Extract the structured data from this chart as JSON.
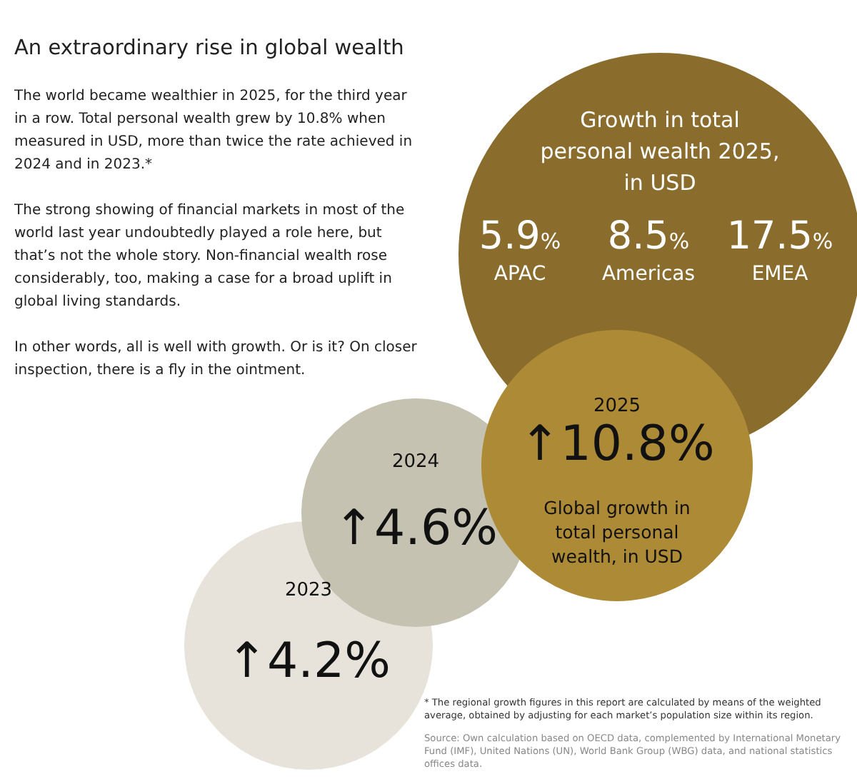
{
  "chart_data": [
    {
      "type": "other",
      "title": "Growth in total personal wealth 2025, in USD",
      "categories": [
        "APAC",
        "Americas",
        "EMEA"
      ],
      "values": [
        5.9,
        8.5,
        17.5
      ],
      "value_labels": [
        "5.9%",
        "8.5%",
        "17.5%"
      ],
      "color": "#8a6c2c"
    },
    {
      "type": "other",
      "title": "An extraordinary rise in global wealth",
      "categories": [
        "2023",
        "2024",
        "2025"
      ],
      "values": [
        4.2,
        4.6,
        10.8
      ],
      "value_labels": [
        "↑4.2%",
        "↑4.6%",
        "↑10.8%"
      ],
      "colors": [
        "#e7e3da",
        "#c5c2b1",
        "#ad8a35"
      ],
      "annotations": [
        "Global growth in total personal wealth, in USD",
        "The world became wealthier in 2025, for the third year in a row. Total personal wealth grew by 10.8% when measured in USD, more than twice the rate achieved in 2024 and in 2023.*",
        "The strong showing of financial markets in most of the world last year undoubtedly played a role here, but that’s not the whole story. Non-financial wealth rose considerably, too, making a case for a broad uplift in global living standards.",
        "In other words, all is well with growth. Or is it? On closer inspection, there is a fly in the ointment.",
        "* The regional growth figures in this report are calculated by means of the weighted average, obtained by adjusting for each market’s population size within its region.",
        "Source: Own calculation based on OECD data, complemented by International Monetary Fund (IMF), United Nations (UN), World Bank Group (WBG) data, and national statistics offices data."
      ]
    }
  ]
}
